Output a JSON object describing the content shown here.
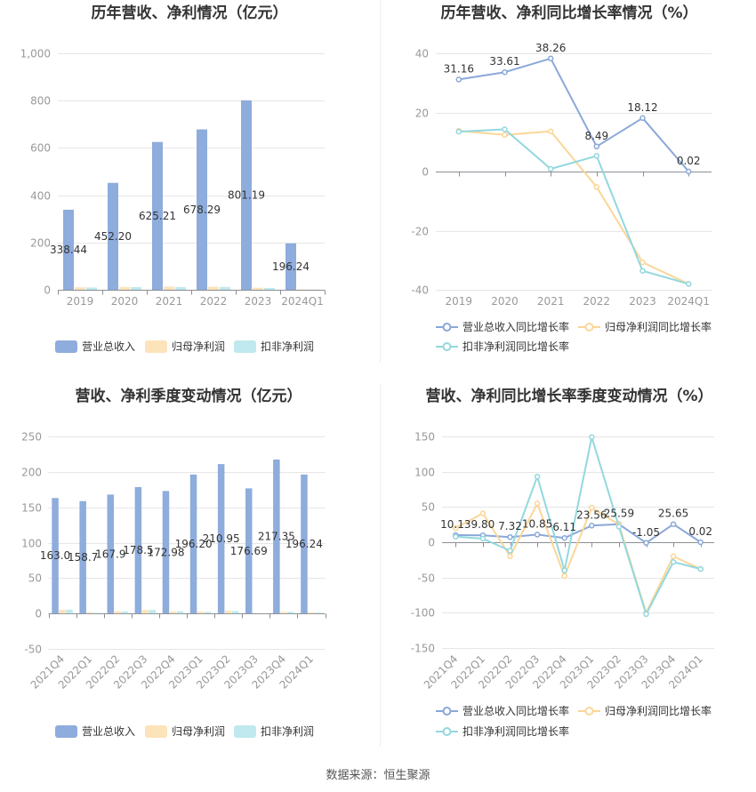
{
  "chart_data": [
    {
      "type": "bar",
      "title": "历年营收、净利情况（亿元）",
      "categories": [
        "2019",
        "2020",
        "2021",
        "2022",
        "2023",
        "2024Q1"
      ],
      "ylim": [
        0,
        1000
      ],
      "yticks": [
        0,
        200,
        400,
        600,
        800,
        1000
      ],
      "ytick_labels": [
        "0",
        "200",
        "400",
        "600",
        "800",
        "1,000"
      ],
      "grid": true,
      "series": [
        {
          "name": "营业总收入",
          "color": "#8eacdc",
          "values": [
            338.44,
            452.2,
            625.21,
            678.29,
            801.19,
            196.24
          ],
          "labels": [
            "338.44",
            "452.20",
            "625.21",
            "678.29",
            "801.19",
            "196.24"
          ]
        },
        {
          "name": "归母净利润",
          "color": "#fde3ba",
          "values": [
            10.5,
            11.8,
            13.4,
            12.7,
            8.8,
            1.6
          ]
        },
        {
          "name": "扣非净利润",
          "color": "#bfe9ee",
          "values": [
            9.8,
            11.2,
            11.3,
            11.9,
            7.9,
            1.4
          ]
        }
      ]
    },
    {
      "type": "line",
      "title": "历年营收、净利同比增长率情况（%）",
      "categories": [
        "2019",
        "2020",
        "2021",
        "2022",
        "2023",
        "2024Q1"
      ],
      "ylim": [
        -40,
        40
      ],
      "yticks": [
        -40,
        -20,
        0,
        20,
        40
      ],
      "ytick_labels": [
        "-40",
        "-20",
        "0",
        "20",
        "40"
      ],
      "grid": true,
      "series": [
        {
          "name": "营业总收入同比增长率",
          "color": "#8aa8d8",
          "values": [
            31.16,
            33.61,
            38.26,
            8.49,
            18.12,
            0.02
          ],
          "labels": [
            "31.16",
            "33.61",
            "38.26",
            "8.49",
            "18.12",
            "0.02"
          ]
        },
        {
          "name": "归母净利润同比增长率",
          "color": "#fbd698",
          "values": [
            13.8,
            12.4,
            13.6,
            -5.2,
            -30.7,
            -38.0
          ]
        },
        {
          "name": "扣非净利润同比增长率",
          "color": "#92d8de",
          "values": [
            13.5,
            14.3,
            0.9,
            5.3,
            -33.6,
            -38.0
          ]
        }
      ]
    },
    {
      "type": "bar",
      "title": "营收、净利季度变动情况（亿元）",
      "categories": [
        "2021Q4",
        "2022Q1",
        "2022Q2",
        "2022Q3",
        "2022Q4",
        "2023Q1",
        "2023Q2",
        "2023Q3",
        "2023Q4",
        "2024Q1"
      ],
      "ylim": [
        -50,
        250
      ],
      "yticks": [
        -50,
        0,
        50,
        100,
        150,
        200,
        250
      ],
      "ytick_labels": [
        "-50",
        "0",
        "50",
        "100",
        "150",
        "200",
        "250"
      ],
      "grid": true,
      "series": [
        {
          "name": "营业总收入",
          "color": "#8eacdc",
          "values": [
            163.0,
            158.7,
            167.9,
            178.5,
            172.98,
            196.2,
            210.95,
            176.69,
            217.35,
            196.24
          ],
          "labels": [
            "163.0",
            "158.7",
            "167.9",
            "178.5",
            "172.98",
            "196.20",
            "210.95",
            "176.69",
            "217.35",
            "196.24"
          ]
        },
        {
          "name": "归母净利润",
          "color": "#fde3ba",
          "values": [
            5.3,
            1.8,
            3.2,
            5.0,
            2.8,
            2.6,
            4.0,
            0.0,
            2.2,
            1.6
          ]
        },
        {
          "name": "扣非净利润",
          "color": "#bfe9ee",
          "values": [
            5.4,
            0.9,
            2.8,
            5.0,
            3.2,
            2.2,
            3.4,
            -0.1,
            2.3,
            1.4
          ]
        }
      ]
    },
    {
      "type": "line",
      "title": "营收、净利同比增长率季度变动情况（%）",
      "categories": [
        "2021Q4",
        "2022Q1",
        "2022Q2",
        "2022Q3",
        "2022Q4",
        "2023Q1",
        "2023Q2",
        "2023Q3",
        "2023Q4",
        "2024Q1"
      ],
      "ylim": [
        -150,
        150
      ],
      "yticks": [
        -150,
        -100,
        -50,
        0,
        50,
        100,
        150
      ],
      "ytick_labels": [
        "-150",
        "-100",
        "-50",
        "0",
        "50",
        "100",
        "150"
      ],
      "grid": true,
      "series": [
        {
          "name": "营业总收入同比增长率",
          "color": "#8aa8d8",
          "values": [
            10.13,
            9.8,
            7.32,
            10.85,
            6.11,
            23.56,
            25.59,
            -1.05,
            25.65,
            0.02
          ],
          "labels": [
            "10.13",
            "9.80",
            "7.32",
            "10.85",
            "6.11",
            "23.56",
            "25.59",
            "-1.05",
            "25.65",
            "0.02"
          ]
        },
        {
          "name": "归母净利润同比增长率",
          "color": "#fbd698",
          "values": [
            20,
            41,
            -20,
            55,
            -48,
            49,
            25,
            -100,
            -20,
            -38
          ]
        },
        {
          "name": "扣非净利润同比增长率",
          "color": "#92d8de",
          "values": [
            8,
            5,
            -12,
            93,
            -40,
            149,
            22,
            -102,
            -28,
            -38
          ]
        }
      ]
    }
  ],
  "source": "数据来源：恒生聚源"
}
